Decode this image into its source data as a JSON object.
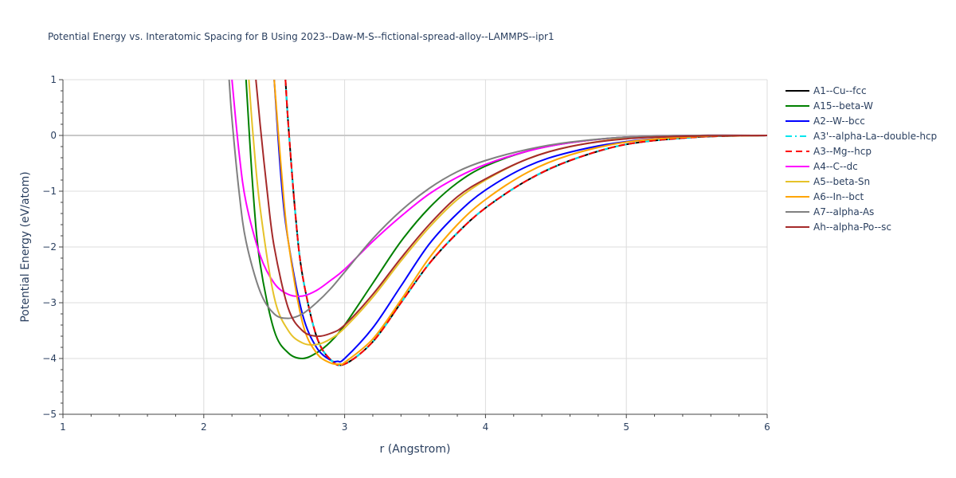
{
  "chart_data": {
    "type": "line",
    "title": "Potential Energy vs. Interatomic Spacing for B Using 2023--Daw-M-S--fictional-spread-alloy--LAMMPS--ipr1",
    "xlabel": "r (Angstrom)",
    "ylabel": "Potential Energy (eV/atom)",
    "xlim": [
      1,
      6
    ],
    "ylim": [
      -5,
      1
    ],
    "xticks": [
      1,
      2,
      3,
      4,
      5,
      6
    ],
    "xtick_labels": [
      "1",
      "2",
      "3",
      "4",
      "5",
      "6"
    ],
    "yticks": [
      1,
      0,
      -1,
      -2,
      -3,
      -4,
      -5
    ],
    "ytick_labels": [
      "1",
      "0",
      "−1",
      "−2",
      "−3",
      "−4",
      "−5"
    ],
    "grid": true,
    "legend_position": "right",
    "series": [
      {
        "name": "A1--Cu--fcc",
        "color": "#000000",
        "dash": "solid",
        "x": [
          2.58,
          2.6,
          2.65,
          2.7,
          2.8,
          2.9,
          3.0,
          3.2,
          3.4,
          3.6,
          3.8,
          4.0,
          4.3,
          4.6,
          5.0,
          5.5,
          6.0
        ],
        "y": [
          1.0,
          0.2,
          -1.4,
          -2.5,
          -3.6,
          -4.02,
          -4.1,
          -3.7,
          -3.0,
          -2.3,
          -1.75,
          -1.3,
          -0.8,
          -0.45,
          -0.16,
          -0.03,
          0.0
        ]
      },
      {
        "name": "A15--beta-W",
        "color": "#008000",
        "dash": "solid",
        "x": [
          2.3,
          2.35,
          2.4,
          2.5,
          2.6,
          2.7,
          2.8,
          2.9,
          3.0,
          3.2,
          3.4,
          3.6,
          3.8,
          4.0,
          4.3,
          4.6,
          5.0,
          5.5,
          6.0
        ],
        "y": [
          1.0,
          -1.0,
          -2.3,
          -3.5,
          -3.9,
          -4.0,
          -3.9,
          -3.7,
          -3.4,
          -2.65,
          -1.9,
          -1.3,
          -0.85,
          -0.55,
          -0.28,
          -0.13,
          -0.03,
          0.0,
          0.0
        ]
      },
      {
        "name": "A2--W--bcc",
        "color": "#0000ff",
        "dash": "solid",
        "x": [
          2.5,
          2.55,
          2.6,
          2.7,
          2.8,
          2.9,
          2.95,
          3.0,
          3.2,
          3.4,
          3.6,
          3.8,
          4.0,
          4.3,
          4.6,
          5.0,
          5.5,
          6.0
        ],
        "y": [
          1.0,
          -0.8,
          -1.9,
          -3.2,
          -3.8,
          -4.03,
          -4.05,
          -4.0,
          -3.45,
          -2.7,
          -1.95,
          -1.4,
          -0.98,
          -0.55,
          -0.3,
          -0.11,
          -0.02,
          0.0
        ]
      },
      {
        "name": "A3'--alpha-La--double-hcp",
        "color": "#00e5ee",
        "dash": "dashdot",
        "x": [
          2.58,
          2.6,
          2.65,
          2.7,
          2.8,
          2.9,
          3.0,
          3.2,
          3.4,
          3.6,
          3.8,
          4.0,
          4.3,
          4.6,
          5.0,
          5.5,
          6.0
        ],
        "y": [
          1.0,
          0.2,
          -1.4,
          -2.5,
          -3.6,
          -4.02,
          -4.1,
          -3.7,
          -3.0,
          -2.3,
          -1.75,
          -1.3,
          -0.8,
          -0.45,
          -0.16,
          -0.03,
          0.0
        ]
      },
      {
        "name": "A3--Mg--hcp",
        "color": "#ff0000",
        "dash": "dash",
        "x": [
          2.58,
          2.6,
          2.65,
          2.7,
          2.8,
          2.9,
          3.0,
          3.2,
          3.4,
          3.6,
          3.8,
          4.0,
          4.3,
          4.6,
          5.0,
          5.5,
          6.0
        ],
        "y": [
          1.0,
          0.2,
          -1.4,
          -2.5,
          -3.6,
          -4.02,
          -4.1,
          -3.7,
          -3.0,
          -2.3,
          -1.75,
          -1.3,
          -0.8,
          -0.45,
          -0.16,
          -0.03,
          0.0
        ]
      },
      {
        "name": "A4--C--dc",
        "color": "#ff00ff",
        "dash": "solid",
        "x": [
          2.2,
          2.25,
          2.3,
          2.4,
          2.5,
          2.6,
          2.7,
          2.8,
          2.9,
          3.0,
          3.2,
          3.4,
          3.6,
          3.8,
          4.0,
          4.3,
          4.6,
          5.0,
          5.5,
          6.0
        ],
        "y": [
          1.0,
          -0.3,
          -1.2,
          -2.15,
          -2.65,
          -2.85,
          -2.88,
          -2.78,
          -2.6,
          -2.4,
          -1.9,
          -1.45,
          -1.05,
          -0.75,
          -0.52,
          -0.28,
          -0.13,
          -0.03,
          0.0,
          0.0
        ]
      },
      {
        "name": "A5--beta-Sn",
        "color": "#e6c229",
        "dash": "solid",
        "x": [
          2.32,
          2.35,
          2.4,
          2.5,
          2.6,
          2.7,
          2.8,
          2.9,
          3.0,
          3.2,
          3.4,
          3.6,
          3.8,
          4.0,
          4.3,
          4.6,
          5.0,
          5.5,
          6.0
        ],
        "y": [
          1.0,
          0.0,
          -1.3,
          -2.9,
          -3.5,
          -3.72,
          -3.75,
          -3.65,
          -3.45,
          -2.9,
          -2.25,
          -1.65,
          -1.15,
          -0.8,
          -0.42,
          -0.2,
          -0.05,
          -0.01,
          0.0
        ]
      },
      {
        "name": "A6--In--bct",
        "color": "#ffa500",
        "dash": "solid",
        "x": [
          2.5,
          2.55,
          2.6,
          2.7,
          2.8,
          2.9,
          2.97,
          3.0,
          3.2,
          3.4,
          3.6,
          3.8,
          4.0,
          4.3,
          4.6,
          5.0,
          5.5,
          6.0
        ],
        "y": [
          1.0,
          -0.6,
          -1.9,
          -3.35,
          -3.9,
          -4.08,
          -4.1,
          -4.07,
          -3.65,
          -2.95,
          -2.2,
          -1.6,
          -1.15,
          -0.66,
          -0.35,
          -0.12,
          -0.02,
          0.0
        ]
      },
      {
        "name": "A7--alpha-As",
        "color": "#808080",
        "dash": "solid",
        "x": [
          2.18,
          2.2,
          2.25,
          2.3,
          2.4,
          2.5,
          2.6,
          2.7,
          2.8,
          2.9,
          3.0,
          3.2,
          3.4,
          3.6,
          3.8,
          4.0,
          4.3,
          4.6,
          5.0,
          5.5,
          6.0
        ],
        "y": [
          1.0,
          0.3,
          -1.0,
          -1.9,
          -2.8,
          -3.2,
          -3.28,
          -3.2,
          -3.0,
          -2.75,
          -2.45,
          -1.85,
          -1.35,
          -0.95,
          -0.65,
          -0.45,
          -0.25,
          -0.12,
          -0.03,
          0.0,
          0.0
        ]
      },
      {
        "name": "Ah--alpha-Po--sc",
        "color": "#a52a2a",
        "dash": "solid",
        "x": [
          2.37,
          2.4,
          2.45,
          2.5,
          2.6,
          2.7,
          2.8,
          2.9,
          3.0,
          3.2,
          3.4,
          3.6,
          3.8,
          4.0,
          4.3,
          4.6,
          5.0,
          5.5,
          6.0
        ],
        "y": [
          1.0,
          0.2,
          -1.0,
          -2.0,
          -3.1,
          -3.5,
          -3.6,
          -3.55,
          -3.4,
          -2.85,
          -2.2,
          -1.6,
          -1.1,
          -0.78,
          -0.42,
          -0.2,
          -0.06,
          -0.01,
          0.0
        ]
      }
    ]
  }
}
